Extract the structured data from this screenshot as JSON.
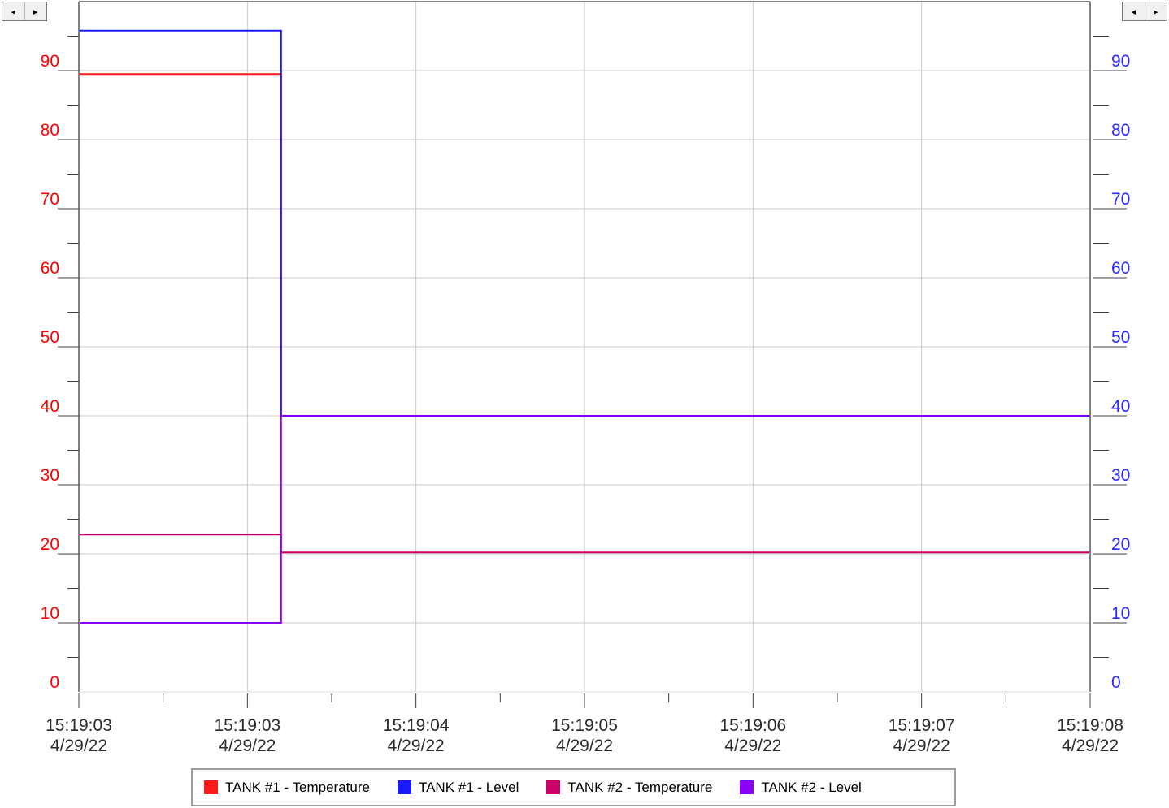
{
  "scroll": {
    "left_arrow": "◂",
    "right_arrow": "▸"
  },
  "colors": {
    "left_axis": "#ff0000",
    "right_axis": "#2b2bff",
    "grid": "#c8c8c8",
    "frame": "#808080"
  },
  "chart_data": {
    "type": "line",
    "step": true,
    "grid": true,
    "legend_position": "bottom",
    "x_ticks": [
      {
        "time": "15:19:03",
        "date": "4/29/22"
      },
      {
        "time": "15:19:03",
        "date": "4/29/22"
      },
      {
        "time": "15:19:04",
        "date": "4/29/22"
      },
      {
        "time": "15:19:05",
        "date": "4/29/22"
      },
      {
        "time": "15:19:06",
        "date": "4/29/22"
      },
      {
        "time": "15:19:07",
        "date": "4/29/22"
      },
      {
        "time": "15:19:08",
        "date": "4/29/22"
      }
    ],
    "xlim": [
      0,
      6
    ],
    "y_left": {
      "ylim": [
        0,
        100
      ],
      "ticks": [
        "0",
        "10",
        "20",
        "30",
        "40",
        "50",
        "60",
        "70",
        "80",
        "90"
      ]
    },
    "y_right": {
      "ylim": [
        0,
        100
      ],
      "ticks": [
        "0",
        "10",
        "20",
        "30",
        "40",
        "50",
        "60",
        "70",
        "80",
        "90"
      ]
    },
    "series": [
      {
        "name": "TANK #1 - Temperature",
        "color": "#ff1a1a",
        "points": [
          [
            0,
            89.5
          ],
          [
            1.2,
            89.5
          ],
          [
            1.2,
            40
          ],
          [
            6,
            40
          ]
        ]
      },
      {
        "name": "TANK #1 - Level",
        "color": "#1a1aff",
        "points": [
          [
            0,
            95.8
          ],
          [
            1.2,
            95.8
          ],
          [
            1.2,
            40
          ],
          [
            6,
            40
          ]
        ]
      },
      {
        "name": "TANK #2 - Temperature",
        "color": "#cc0066",
        "points": [
          [
            0,
            22.8
          ],
          [
            1.2,
            22.8
          ],
          [
            1.2,
            20.2
          ],
          [
            6,
            20.2
          ]
        ]
      },
      {
        "name": "TANK #2 - Level",
        "color": "#8a00ff",
        "points": [
          [
            0,
            10
          ],
          [
            1.2,
            10
          ],
          [
            1.2,
            40
          ],
          [
            6,
            40
          ]
        ]
      }
    ]
  }
}
